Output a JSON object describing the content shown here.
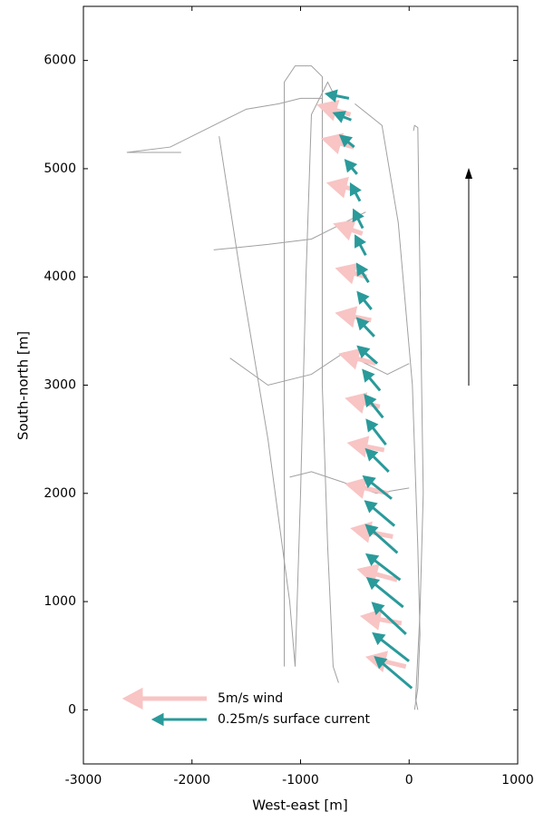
{
  "chart_data": {
    "type": "quiver",
    "xlabel": "West-east [m]",
    "ylabel": "South-north [m]",
    "xlim": [
      -3000,
      1000
    ],
    "ylim": [
      -500,
      6500
    ],
    "xticks": [
      -3000,
      -2000,
      -1000,
      0,
      1000
    ],
    "yticks": [
      0,
      1000,
      2000,
      3000,
      4000,
      5000,
      6000
    ],
    "tracks": {
      "color": "#a0a0a0",
      "lines": [
        {
          "x": [
            -2600,
            -2200,
            -1800,
            -1500,
            -1200,
            -1000,
            -800
          ],
          "y": [
            5150,
            5200,
            5400,
            5550,
            5600,
            5650,
            5650
          ]
        },
        {
          "x": [
            -1750,
            -1550,
            -1300,
            -1100,
            -1050
          ],
          "y": [
            5300,
            4000,
            2500,
            1000,
            400
          ]
        },
        {
          "x": [
            -1050,
            -1000,
            -950,
            -900,
            -750,
            -700
          ],
          "y": [
            400,
            2000,
            4000,
            5500,
            5800,
            5700
          ]
        },
        {
          "x": [
            -1150,
            -1150,
            -1050,
            -900,
            -800,
            -800,
            -750,
            -700,
            -650
          ],
          "y": [
            400,
            5800,
            5950,
            5950,
            5850,
            3000,
            1500,
            400,
            250
          ]
        },
        {
          "x": [
            -500,
            -250,
            -100,
            30,
            80,
            100,
            80,
            50
          ],
          "y": [
            5600,
            5400,
            4500,
            3000,
            1500,
            700,
            200,
            0
          ]
        },
        {
          "x": [
            40,
            50,
            80,
            100,
            130,
            100,
            60,
            80
          ],
          "y": [
            5350,
            5400,
            5380,
            4000,
            2000,
            900,
            100,
            0
          ]
        },
        {
          "x": [
            -1800,
            -1300,
            -900,
            -600,
            -400
          ],
          "y": [
            4250,
            4300,
            4350,
            4500,
            4600
          ]
        },
        {
          "x": [
            -1650,
            -1300,
            -900,
            -600,
            -200,
            0
          ],
          "y": [
            3250,
            3000,
            3100,
            3300,
            3100,
            3200
          ]
        },
        {
          "x": [
            -1100,
            -900,
            -600,
            -300,
            0
          ],
          "y": [
            2150,
            2200,
            2100,
            2000,
            2050
          ]
        },
        {
          "x": [
            -2600,
            -2100
          ],
          "y": [
            5150,
            5150
          ]
        }
      ]
    },
    "series": [
      {
        "name": "5m/s wind",
        "color": "#f8c4c4",
        "width": 5,
        "x": [
          -30,
          -70,
          -110,
          -150,
          -190,
          -230,
          -270,
          -310,
          -350,
          -390,
          -430,
          -470,
          -510,
          -540
        ],
        "y": [
          400,
          800,
          1200,
          1600,
          2000,
          2400,
          2800,
          3200,
          3600,
          4000,
          4400,
          4800,
          5200,
          5500
        ],
        "dx": [
          -330,
          -340,
          -330,
          -350,
          -360,
          -300,
          -280,
          -300,
          -290,
          -250,
          -230,
          -250,
          -260,
          -270
        ],
        "dy": [
          80,
          60,
          90,
          70,
          80,
          60,
          70,
          80,
          60,
          70,
          80,
          60,
          70,
          80
        ]
      },
      {
        "name": "0.25m/s surface current",
        "color": "#2a9a9a",
        "width": 3,
        "x": [
          25,
          -2,
          -29,
          -55,
          -82,
          -108,
          -135,
          -161,
          -188,
          -214,
          -241,
          -268,
          -294,
          -321,
          -347,
          -374,
          -400,
          -427,
          -453,
          -480,
          -506,
          -533,
          -554
        ],
        "y": [
          200,
          450,
          700,
          950,
          1200,
          1450,
          1700,
          1950,
          2200,
          2450,
          2700,
          2950,
          3200,
          3450,
          3700,
          3950,
          4200,
          4450,
          4700,
          4950,
          5200,
          5450,
          5650
        ],
        "dx": [
          -330,
          -320,
          -300,
          -320,
          -300,
          -280,
          -260,
          -250,
          -200,
          -170,
          -160,
          -150,
          -170,
          -150,
          -120,
          -100,
          -90,
          -80,
          -80,
          -100,
          -120,
          -150,
          -200
        ],
        "dy": [
          280,
          250,
          280,
          260,
          230,
          250,
          220,
          200,
          200,
          220,
          200,
          180,
          150,
          160,
          150,
          160,
          170,
          160,
          150,
          120,
          100,
          60,
          40
        ]
      }
    ]
  }
}
